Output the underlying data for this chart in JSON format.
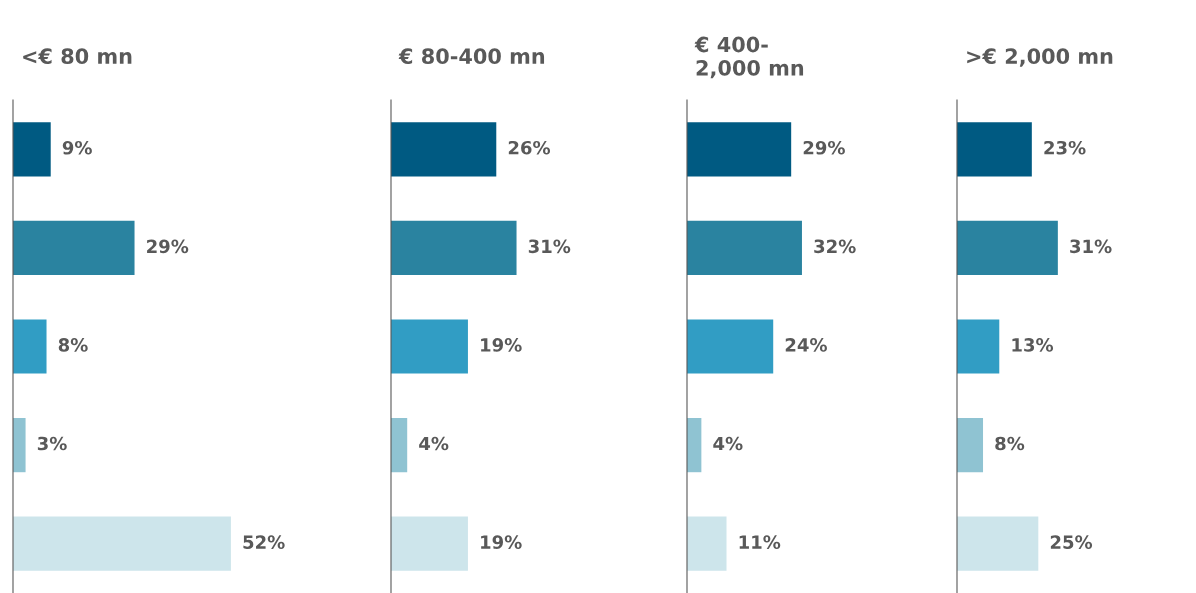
{
  "chart_data": [
    {
      "type": "bar",
      "orientation": "horizontal",
      "title": "<€ 80 mn",
      "categories": [
        null,
        null,
        null,
        null,
        null
      ],
      "values": [
        9,
        29,
        8,
        3,
        52
      ],
      "value_labels": [
        "9%",
        "29%",
        "8%",
        "3%",
        "52%"
      ],
      "colors": [
        "#005a82",
        "#2a83a0",
        "#319dc4",
        "#8fc3d2",
        "#cde5eb"
      ]
    },
    {
      "type": "bar",
      "orientation": "horizontal",
      "title": "€ 80-400 mn",
      "categories": [
        null,
        null,
        null,
        null,
        null
      ],
      "values": [
        26,
        31,
        19,
        4,
        19
      ],
      "value_labels": [
        "26%",
        "31%",
        "19%",
        "4%",
        "19%"
      ],
      "colors": [
        "#005a82",
        "#2a83a0",
        "#319dc4",
        "#8fc3d2",
        "#cde5eb"
      ]
    },
    {
      "type": "bar",
      "orientation": "horizontal",
      "title": "€ 400-\n2,000 mn",
      "categories": [
        null,
        null,
        null,
        null,
        null
      ],
      "values": [
        29,
        32,
        24,
        4,
        11
      ],
      "value_labels": [
        "29%",
        "32%",
        "24%",
        "4%",
        "11%"
      ],
      "colors": [
        "#005a82",
        "#2a83a0",
        "#319dc4",
        "#8fc3d2",
        "#cde5eb"
      ]
    },
    {
      "type": "bar",
      "orientation": "horizontal",
      "title": ">€ 2,000 mn",
      "categories": [
        null,
        null,
        null,
        null,
        null
      ],
      "values": [
        23,
        31,
        13,
        8,
        25
      ],
      "value_labels": [
        "23%",
        "31%",
        "13%",
        "8%",
        "25%"
      ],
      "colors": [
        "#005a82",
        "#2a83a0",
        "#319dc4",
        "#8fc3d2",
        "#cde5eb"
      ]
    }
  ]
}
